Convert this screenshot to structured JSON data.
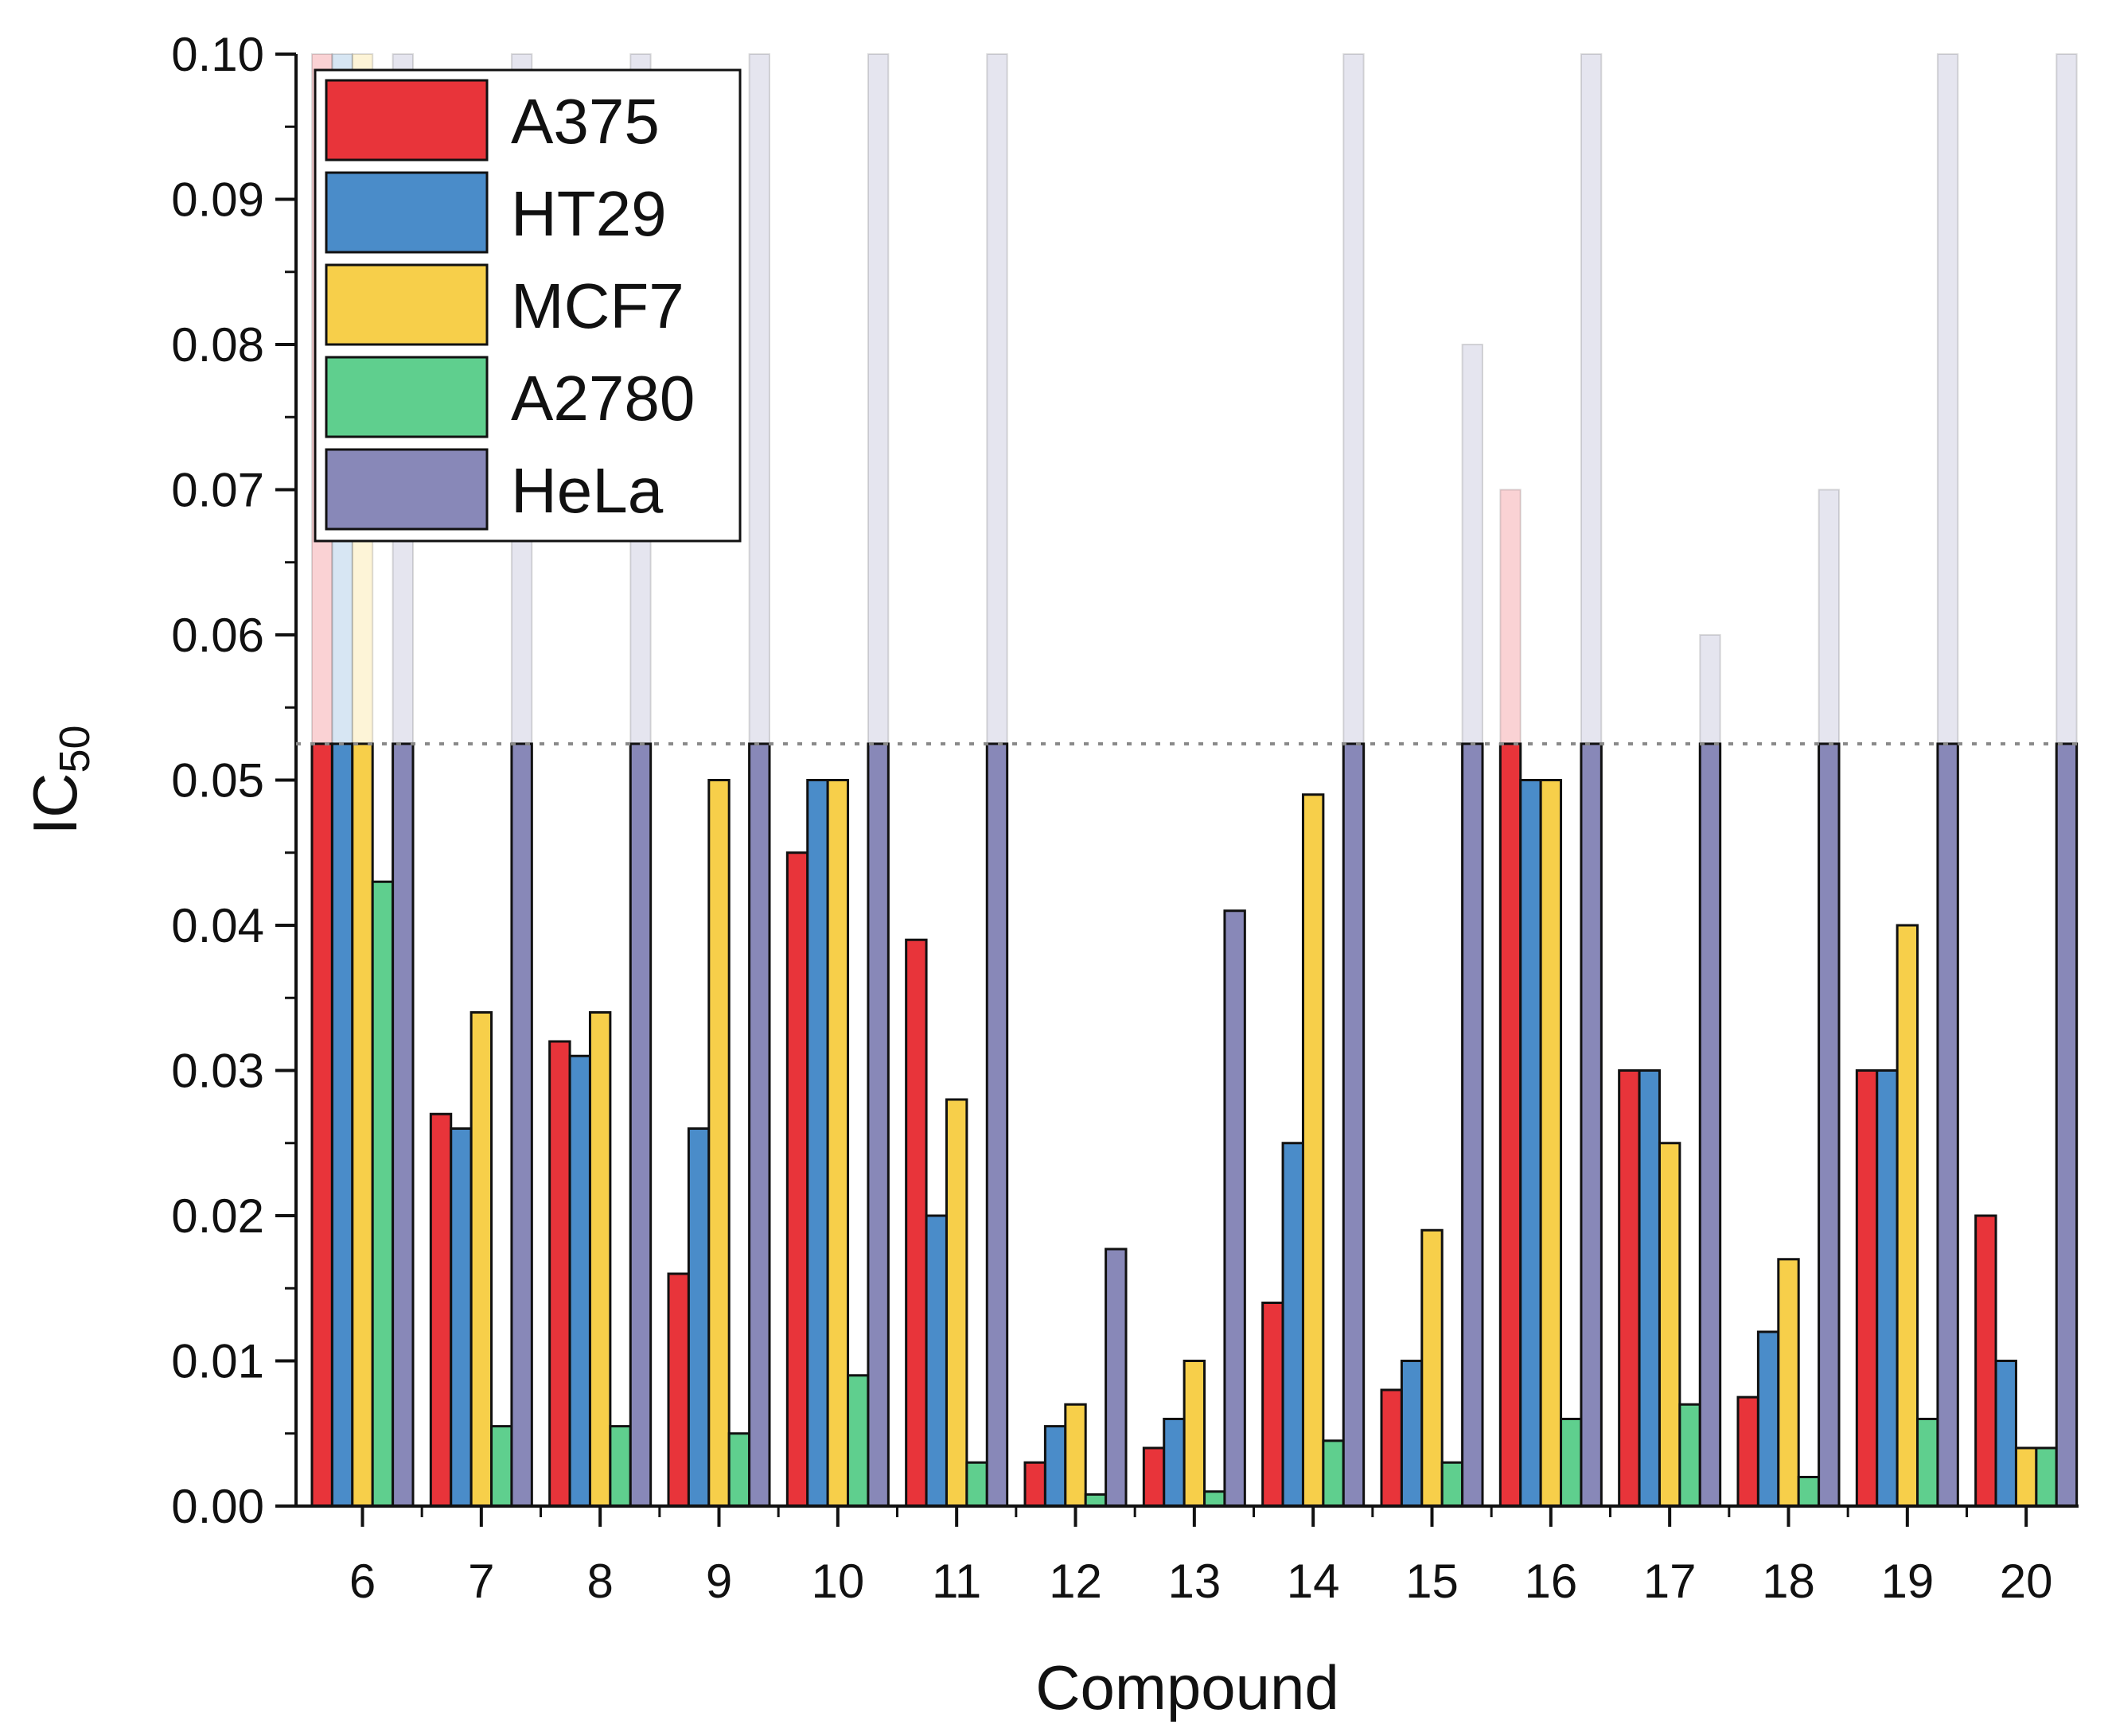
{
  "chart_data": {
    "type": "bar",
    "title": "",
    "xlabel": "Compound",
    "ylabel": {
      "main": "IC",
      "sub": "50"
    },
    "ylim": [
      0,
      0.1
    ],
    "y_ticks": [
      "0.00",
      "0.01",
      "0.02",
      "0.03",
      "0.04",
      "0.05",
      "0.06",
      "0.07",
      "0.08",
      "0.09",
      "0.10"
    ],
    "axis_break": 0.0525,
    "grid": false,
    "legend_position": "top-left",
    "categories": [
      "6",
      "7",
      "8",
      "9",
      "10",
      "11",
      "12",
      "13",
      "14",
      "15",
      "16",
      "17",
      "18",
      "19",
      "20"
    ],
    "series": [
      {
        "name": "A375",
        "color": "#e8343a",
        "values": [
          0.1,
          0.027,
          0.032,
          0.016,
          0.045,
          0.039,
          0.003,
          0.004,
          0.014,
          0.008,
          0.07,
          0.03,
          0.0075,
          0.03,
          0.02
        ]
      },
      {
        "name": "HT29",
        "color": "#4a8cc9",
        "values": [
          0.1,
          0.026,
          0.031,
          0.026,
          0.05,
          0.02,
          0.0055,
          0.006,
          0.025,
          0.01,
          0.05,
          0.03,
          0.012,
          0.03,
          0.01
        ]
      },
      {
        "name": "MCF7",
        "color": "#f7cf4a",
        "values": [
          0.1,
          0.034,
          0.034,
          0.05,
          0.05,
          0.028,
          0.007,
          0.01,
          0.049,
          0.019,
          0.05,
          0.025,
          0.017,
          0.04,
          0.004
        ]
      },
      {
        "name": "A2780",
        "color": "#5fcf8e",
        "values": [
          0.043,
          0.0055,
          0.0055,
          0.005,
          0.009,
          0.003,
          0.0008,
          0.001,
          0.0045,
          0.003,
          0.006,
          0.007,
          0.002,
          0.006,
          0.004
        ]
      },
      {
        "name": "HeLa",
        "color": "#8888b8",
        "values": [
          0.1,
          0.1,
          0.1,
          0.1,
          0.1,
          0.1,
          0.0177,
          0.041,
          0.1,
          0.08,
          0.1,
          0.06,
          0.07,
          0.1,
          0.1
        ]
      }
    ]
  }
}
